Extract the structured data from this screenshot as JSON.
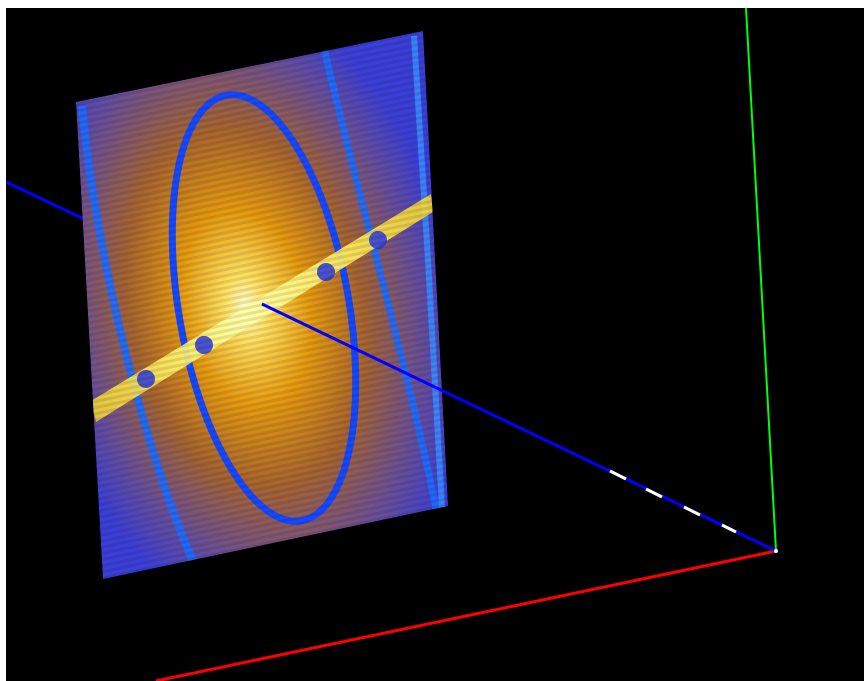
{
  "viewer": {
    "background": "#000000",
    "axes": {
      "x_color": "#ff0000",
      "y_color": "#00ff00",
      "z_color": "#0000ff",
      "dash_color": "#ffffff"
    },
    "plane": {
      "colormap": [
        "#1a2dff",
        "#4a4cd0",
        "#8a5a8e",
        "#c67a2a",
        "#ff9a00",
        "#ffd800",
        "#ffff80"
      ],
      "ring_color": "#1560ff",
      "band_color": "#ffe000"
    }
  }
}
